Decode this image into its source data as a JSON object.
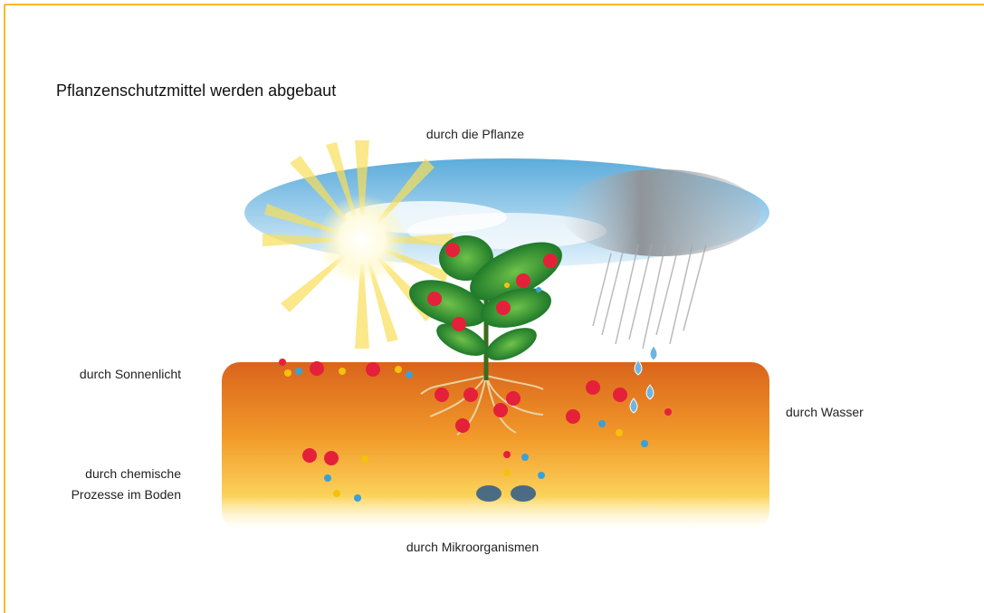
{
  "title": "Pflanzenschutzmittel werden abgebaut",
  "labels": {
    "plant": "durch die Pflanze",
    "sunlight": "durch Sonnenlicht",
    "water": "durch Wasser",
    "chemical": [
      "durch chemische",
      "Prozesse im Boden"
    ],
    "microorganisms": "durch Mikroorganismen"
  }
}
